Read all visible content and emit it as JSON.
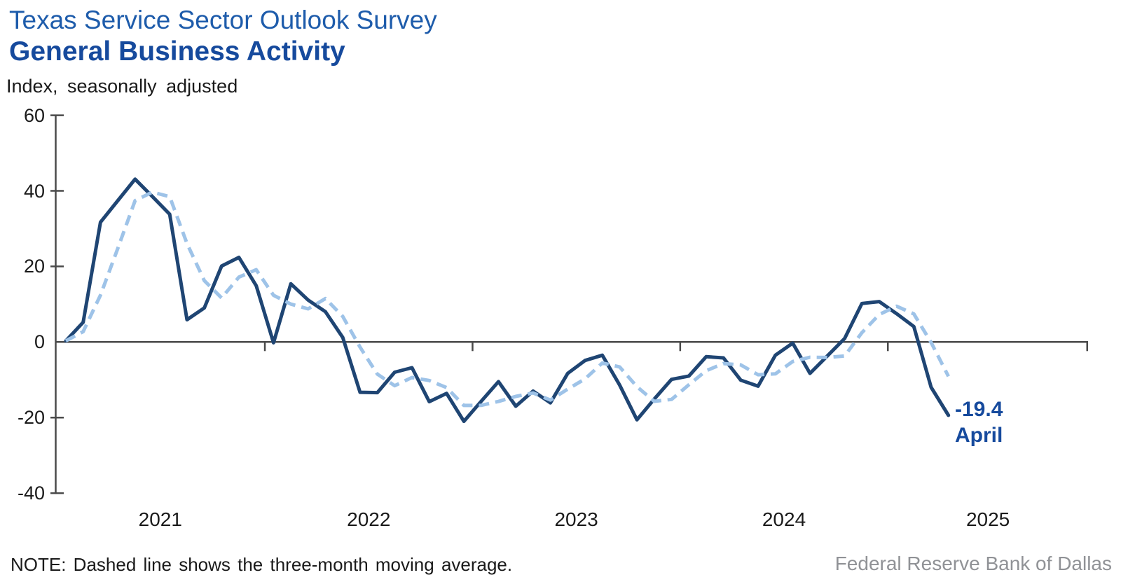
{
  "header": {
    "title": "Texas Service Sector Outlook Survey",
    "subtitle": "General Business Activity",
    "unit_label": "Index, seasonally adjusted"
  },
  "chart_data": {
    "type": "line",
    "frequency": "monthly",
    "start_month": "2021-01",
    "end_month": "2025-04",
    "ylim": [
      -40,
      60
    ],
    "y_ticks": [
      60,
      40,
      20,
      0,
      -20,
      -40
    ],
    "x_tick_labels": [
      "2021",
      "2022",
      "2023",
      "2024",
      "2025"
    ],
    "grid": "zero-line-only",
    "moving_average_window": 3,
    "series": [
      {
        "name": "General Business Activity index",
        "style": "solid",
        "color": "#1F4573",
        "values": [
          0.3,
          5.2,
          31.7,
          37.4,
          43.1,
          38.5,
          33.8,
          5.9,
          9.0,
          20.1,
          22.4,
          14.9,
          -0.2,
          15.4,
          11.1,
          8.0,
          1.2,
          -13.3,
          -13.4,
          -8.0,
          -6.8,
          -15.8,
          -13.6,
          -21.0,
          -15.7,
          -10.5,
          -17.0,
          -13.0,
          -16.1,
          -8.3,
          -4.9,
          -3.5,
          -11.4,
          -20.6,
          -15.1,
          -9.9,
          -9.0,
          -3.9,
          -4.2,
          -10.1,
          -11.7,
          -3.5,
          -0.3,
          -8.3,
          -3.7,
          0.9,
          10.2,
          10.7,
          7.5,
          4.1,
          -12.0,
          -19.4
        ]
      },
      {
        "name": "Three-month moving average",
        "style": "dashed",
        "color": "#9EC3E8",
        "derived_from": "3-month moving average of the index series"
      }
    ],
    "annotation": {
      "value": "-19.4",
      "month": "April"
    },
    "axis_color": "#4A4A4A"
  },
  "footer": {
    "note": "NOTE: Dashed line shows the three-month moving average.",
    "source": "Federal Reserve Bank of Dallas"
  }
}
